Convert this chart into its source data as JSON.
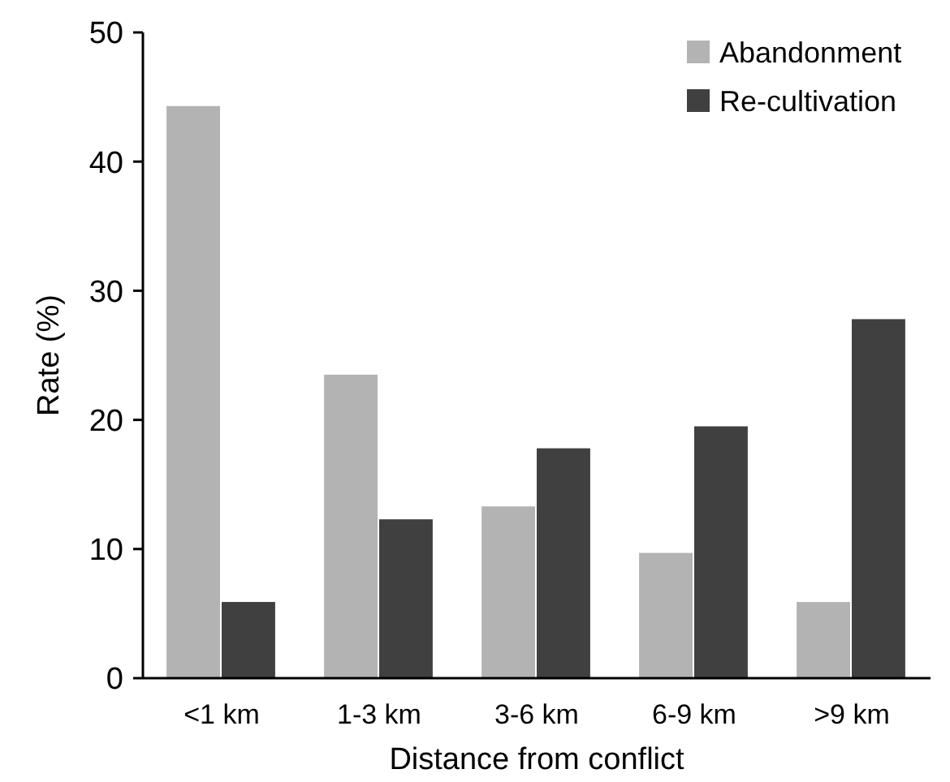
{
  "chart_data": {
    "type": "bar",
    "xlabel": "Distance from conflict",
    "ylabel": "Rate (%)",
    "categories": [
      "<1 km",
      "1-3 km",
      "3-6 km",
      "6-9 km",
      ">9 km"
    ],
    "series": [
      {
        "name": "Abandonment",
        "color": "#b3b3b3",
        "values": [
          44.3,
          23.5,
          13.3,
          9.7,
          5.9
        ]
      },
      {
        "name": "Re-cultivation",
        "color": "#404040",
        "values": [
          5.9,
          12.3,
          17.8,
          19.5,
          27.8
        ]
      }
    ],
    "ylim": [
      0,
      50
    ],
    "yticks": [
      0,
      10,
      20,
      30,
      40,
      50
    ],
    "grid": false,
    "legend": "top right"
  }
}
